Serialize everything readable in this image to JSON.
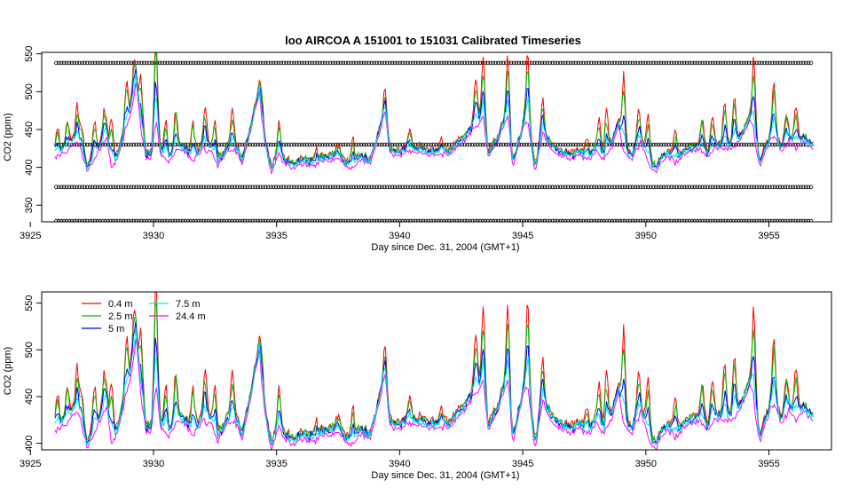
{
  "title": "loo   AIRCOA  A    151001  to  151031   Calibrated Timeseries",
  "chart_data": [
    {
      "type": "line",
      "xlabel": "Day since Dec. 31, 2004 (GMT+1)",
      "ylabel": "CO2 (ppm)",
      "xlim": [
        3926,
        3957
      ],
      "ylim": [
        328,
        552
      ],
      "xticks": [
        3925,
        3930,
        3935,
        3940,
        3945,
        3950,
        3955
      ],
      "yticks": [
        350,
        400,
        450,
        500,
        550
      ],
      "calibration_levels": [
        538,
        430,
        374,
        329
      ],
      "calibration_color": "#000000",
      "series": [
        {
          "name": "0.4 m",
          "color": "#ff0000"
        },
        {
          "name": "2.5 m",
          "color": "#00bb00"
        },
        {
          "name": "5 m",
          "color": "#0000ff"
        },
        {
          "name": "7.5 m",
          "color": "#00e5ee"
        },
        {
          "name": "24.4 m",
          "color": "#ff00ff"
        }
      ]
    },
    {
      "type": "line",
      "xlabel": "Day since Dec. 31, 2004 (GMT+1)",
      "ylabel": "CO2 (ppm)",
      "xlim": [
        3926,
        3957
      ],
      "ylim": [
        393,
        562
      ],
      "xticks": [
        3925,
        3930,
        3935,
        3940,
        3945,
        3950,
        3955
      ],
      "yticks": [
        400,
        450,
        500,
        550
      ],
      "legend": {
        "placement": "top-left",
        "columns": [
          [
            "0.4 m",
            "2.5 m",
            "5 m"
          ],
          [
            "7.5 m",
            "24.4 m"
          ]
        ]
      },
      "series": [
        {
          "name": "0.4 m",
          "color": "#ff0000"
        },
        {
          "name": "2.5 m",
          "color": "#00bb00"
        },
        {
          "name": "5 m",
          "color": "#0000ff"
        },
        {
          "name": "7.5 m",
          "color": "#00e5ee"
        },
        {
          "name": "24.4 m",
          "color": "#ff00ff"
        }
      ]
    }
  ],
  "profile": {
    "base": [
      [
        3926.0,
        418
      ],
      [
        3926.3,
        422
      ],
      [
        3926.6,
        430
      ],
      [
        3926.9,
        440
      ],
      [
        3927.0,
        433
      ],
      [
        3927.3,
        401
      ],
      [
        3927.6,
        415
      ],
      [
        3927.9,
        432
      ],
      [
        3928.1,
        447
      ],
      [
        3928.3,
        402
      ],
      [
        3928.6,
        420
      ],
      [
        3928.9,
        460
      ],
      [
        3929.1,
        480
      ],
      [
        3929.3,
        520
      ],
      [
        3929.5,
        450
      ],
      [
        3929.7,
        418
      ],
      [
        3929.9,
        416
      ],
      [
        3930.1,
        470
      ],
      [
        3930.3,
        420
      ],
      [
        3930.6,
        412
      ],
      [
        3930.9,
        425
      ],
      [
        3931.2,
        428
      ],
      [
        3931.6,
        412
      ],
      [
        3932.0,
        430
      ],
      [
        3932.4,
        425
      ],
      [
        3932.6,
        408
      ],
      [
        3933.0,
        425
      ],
      [
        3933.3,
        430
      ],
      [
        3933.6,
        408
      ],
      [
        3934.0,
        460
      ],
      [
        3934.3,
        505
      ],
      [
        3934.5,
        440
      ],
      [
        3934.8,
        397
      ],
      [
        3935.1,
        425
      ],
      [
        3935.3,
        410
      ],
      [
        3935.7,
        405
      ],
      [
        3936.2,
        410
      ],
      [
        3936.6,
        408
      ],
      [
        3937.0,
        415
      ],
      [
        3937.5,
        415
      ],
      [
        3938.0,
        402
      ],
      [
        3938.4,
        415
      ],
      [
        3938.8,
        410
      ],
      [
        3939.2,
        450
      ],
      [
        3939.4,
        480
      ],
      [
        3939.6,
        425
      ],
      [
        3940.0,
        418
      ],
      [
        3940.4,
        428
      ],
      [
        3940.8,
        425
      ],
      [
        3941.2,
        420
      ],
      [
        3941.6,
        422
      ],
      [
        3942.0,
        422
      ],
      [
        3942.3,
        430
      ],
      [
        3942.6,
        440
      ],
      [
        3943.0,
        455
      ],
      [
        3943.4,
        470
      ],
      [
        3943.6,
        418
      ],
      [
        3944.0,
        440
      ],
      [
        3944.4,
        475
      ],
      [
        3944.6,
        404
      ],
      [
        3945.0,
        455
      ],
      [
        3945.2,
        470
      ],
      [
        3945.5,
        398
      ],
      [
        3945.8,
        450
      ],
      [
        3946.2,
        425
      ],
      [
        3946.6,
        420
      ],
      [
        3946.9,
        415
      ],
      [
        3947.3,
        420
      ],
      [
        3947.7,
        415
      ],
      [
        3948.0,
        426
      ],
      [
        3948.3,
        415
      ],
      [
        3948.6,
        430
      ],
      [
        3948.9,
        460
      ],
      [
        3949.1,
        425
      ],
      [
        3949.4,
        415
      ],
      [
        3949.8,
        440
      ],
      [
        3950.1,
        410
      ],
      [
        3950.4,
        398
      ],
      [
        3950.6,
        410
      ],
      [
        3950.9,
        420
      ],
      [
        3951.2,
        412
      ],
      [
        3951.5,
        420
      ],
      [
        3951.8,
        425
      ],
      [
        3952.2,
        430
      ],
      [
        3952.5,
        418
      ],
      [
        3952.8,
        430
      ],
      [
        3953.2,
        430
      ],
      [
        3953.6,
        432
      ],
      [
        3954.0,
        450
      ],
      [
        3954.3,
        470
      ],
      [
        3954.6,
        405
      ],
      [
        3954.9,
        430
      ],
      [
        3955.2,
        450
      ],
      [
        3955.5,
        425
      ],
      [
        3955.8,
        440
      ],
      [
        3956.1,
        430
      ],
      [
        3956.4,
        440
      ],
      [
        3956.8,
        430
      ]
    ],
    "events": [
      [
        3926.1,
        30
      ],
      [
        3926.5,
        35
      ],
      [
        3926.9,
        40
      ],
      [
        3927.1,
        28
      ],
      [
        3927.6,
        45
      ],
      [
        3928.0,
        35
      ],
      [
        3928.3,
        55
      ],
      [
        3928.9,
        50
      ],
      [
        3929.2,
        40
      ],
      [
        3929.5,
        60
      ],
      [
        3930.1,
        110
      ],
      [
        3930.5,
        45
      ],
      [
        3930.9,
        50
      ],
      [
        3931.6,
        45
      ],
      [
        3932.1,
        50
      ],
      [
        3932.5,
        45
      ],
      [
        3933.2,
        48
      ],
      [
        3934.4,
        25
      ],
      [
        3935.1,
        30
      ],
      [
        3936.6,
        12
      ],
      [
        3937.5,
        12
      ],
      [
        3938.1,
        30
      ],
      [
        3939.4,
        20
      ],
      [
        3940.4,
        20
      ],
      [
        3941.7,
        12
      ],
      [
        3943.1,
        60
      ],
      [
        3943.4,
        70
      ],
      [
        3944.4,
        70
      ],
      [
        3945.2,
        80
      ],
      [
        3945.8,
        40
      ],
      [
        3947.6,
        18
      ],
      [
        3948.1,
        40
      ],
      [
        3948.4,
        50
      ],
      [
        3949.1,
        90
      ],
      [
        3949.7,
        40
      ],
      [
        3950.1,
        55
      ],
      [
        3951.2,
        35
      ],
      [
        3952.3,
        40
      ],
      [
        3952.7,
        40
      ],
      [
        3953.2,
        55
      ],
      [
        3953.6,
        60
      ],
      [
        3954.4,
        90
      ],
      [
        3955.2,
        60
      ],
      [
        3955.7,
        35
      ],
      [
        3956.1,
        50
      ]
    ],
    "factors": [
      1.0,
      0.8,
      0.45,
      0.28,
      0.0
    ],
    "offsets": [
      3,
      2,
      0,
      -1,
      -5
    ]
  }
}
